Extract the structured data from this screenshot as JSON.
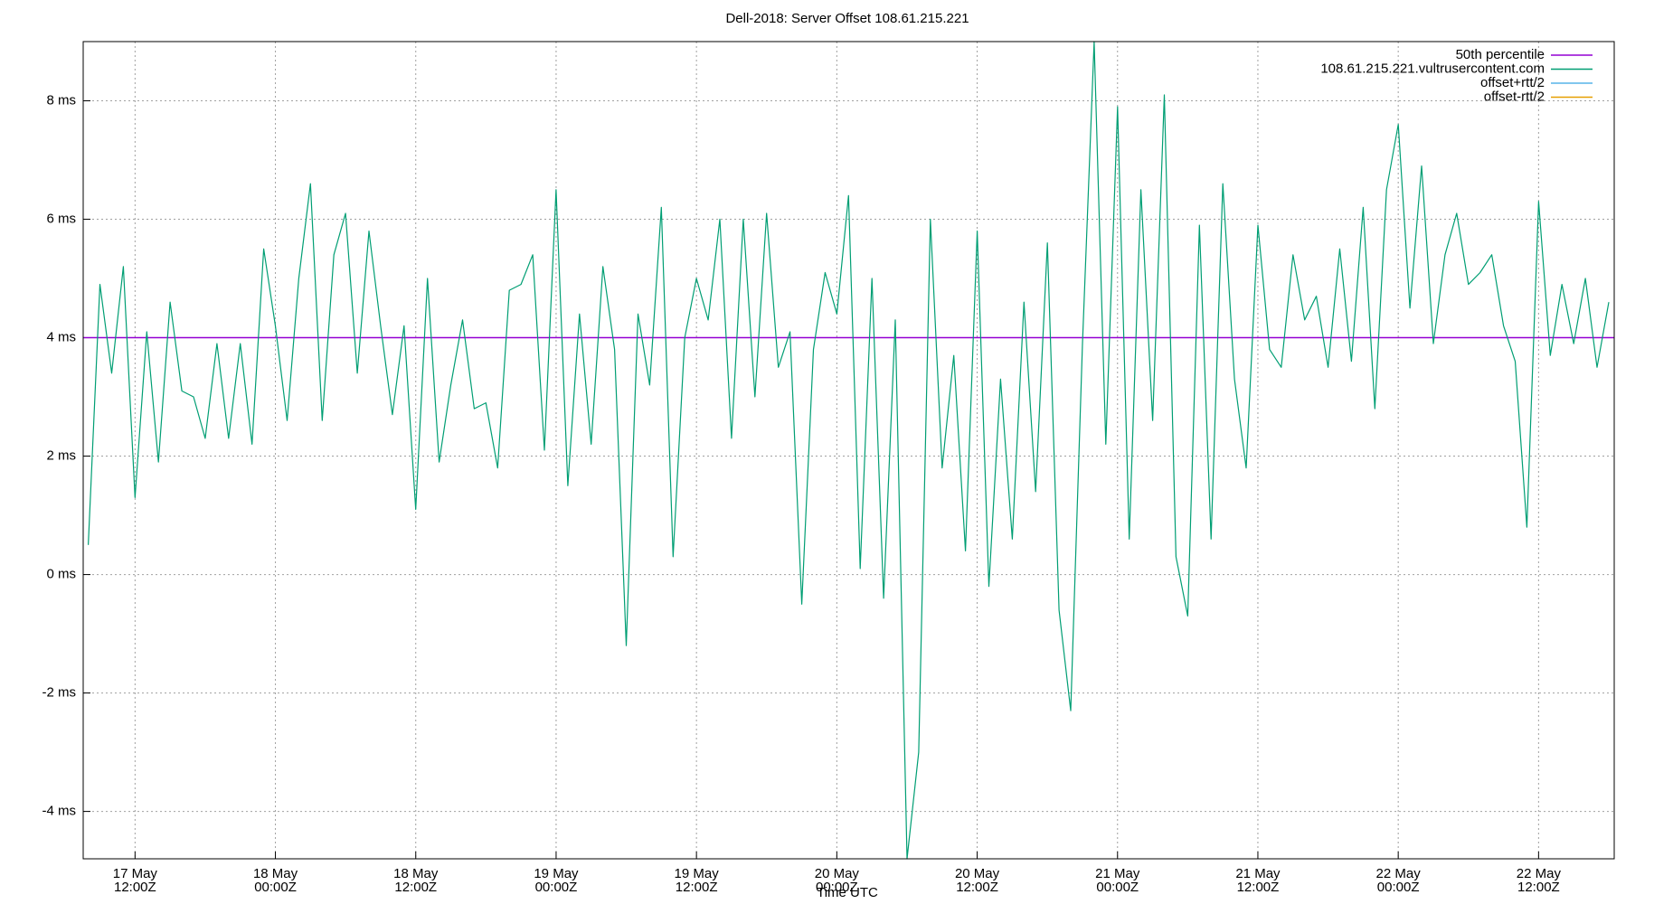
{
  "chart_data": {
    "type": "line",
    "title": "Dell-2018: Server Offset 108.61.215.221",
    "x_label": "Time UTC",
    "xlim": [
      "17 May 07:34Z",
      "22 May 18:28Z"
    ],
    "xticks": [
      {
        "value": "17 May 12:00Z",
        "label": [
          "17 May",
          "12:00Z"
        ]
      },
      {
        "value": "18 May 00:00Z",
        "label": [
          "18 May",
          "00:00Z"
        ]
      },
      {
        "value": "18 May 12:00Z",
        "label": [
          "18 May",
          "12:00Z"
        ]
      },
      {
        "value": "19 May 00:00Z",
        "label": [
          "19 May",
          "00:00Z"
        ]
      },
      {
        "value": "19 May 12:00Z",
        "label": [
          "19 May",
          "12:00Z"
        ]
      },
      {
        "value": "20 May 00:00Z",
        "label": [
          "20 May",
          "00:00Z"
        ]
      },
      {
        "value": "20 May 12:00Z",
        "label": [
          "20 May",
          "12:00Z"
        ]
      },
      {
        "value": "21 May 00:00Z",
        "label": [
          "21 May",
          "00:00Z"
        ]
      },
      {
        "value": "21 May 12:00Z",
        "label": [
          "21 May",
          "12:00Z"
        ]
      },
      {
        "value": "22 May 00:00Z",
        "label": [
          "22 May",
          "00:00Z"
        ]
      },
      {
        "value": "22 May 12:00Z",
        "label": [
          "22 May",
          "12:00Z"
        ]
      }
    ],
    "ylim": [
      -4.8,
      9.0
    ],
    "yticks": [
      {
        "value": -4,
        "label": "-4 ms"
      },
      {
        "value": -2,
        "label": "-2 ms"
      },
      {
        "value": 0,
        "label": "0 ms"
      },
      {
        "value": 2,
        "label": "2 ms"
      },
      {
        "value": 4,
        "label": "4 ms"
      },
      {
        "value": 6,
        "label": "6 ms"
      },
      {
        "value": 8,
        "label": "8 ms"
      }
    ],
    "grid": true,
    "legend": "top-right",
    "percentile": {
      "name": "50th percentile",
      "color": "#9400d3",
      "value": 4.0
    },
    "x": [
      "17 May 08:00Z",
      "17 May 09:00Z",
      "17 May 10:00Z",
      "17 May 11:00Z",
      "17 May 12:00Z",
      "17 May 13:00Z",
      "17 May 14:00Z",
      "17 May 15:00Z",
      "17 May 16:00Z",
      "17 May 17:00Z",
      "17 May 18:00Z",
      "17 May 19:00Z",
      "17 May 20:00Z",
      "17 May 21:00Z",
      "17 May 22:00Z",
      "17 May 23:00Z",
      "18 May 00:00Z",
      "18 May 01:00Z",
      "18 May 02:00Z",
      "18 May 03:00Z",
      "18 May 04:00Z",
      "18 May 05:00Z",
      "18 May 06:00Z",
      "18 May 07:00Z",
      "18 May 08:00Z",
      "18 May 09:00Z",
      "18 May 10:00Z",
      "18 May 11:00Z",
      "18 May 12:00Z",
      "18 May 13:00Z",
      "18 May 14:00Z",
      "18 May 15:00Z",
      "18 May 16:00Z",
      "18 May 17:00Z",
      "18 May 18:00Z",
      "18 May 19:00Z",
      "18 May 20:00Z",
      "18 May 21:00Z",
      "18 May 22:00Z",
      "18 May 23:00Z",
      "19 May 00:00Z",
      "19 May 01:00Z",
      "19 May 02:00Z",
      "19 May 03:00Z",
      "19 May 04:00Z",
      "19 May 05:00Z",
      "19 May 06:00Z",
      "19 May 07:00Z",
      "19 May 08:00Z",
      "19 May 09:00Z",
      "19 May 10:00Z",
      "19 May 11:00Z",
      "19 May 12:00Z",
      "19 May 13:00Z",
      "19 May 14:00Z",
      "19 May 15:00Z",
      "19 May 16:00Z",
      "19 May 17:00Z",
      "19 May 18:00Z",
      "19 May 19:00Z",
      "19 May 20:00Z",
      "19 May 21:00Z",
      "19 May 22:00Z",
      "19 May 23:00Z",
      "20 May 00:00Z",
      "20 May 01:00Z",
      "20 May 02:00Z",
      "20 May 03:00Z",
      "20 May 04:00Z",
      "20 May 05:00Z",
      "20 May 06:00Z",
      "20 May 07:00Z",
      "20 May 08:00Z",
      "20 May 09:00Z",
      "20 May 10:00Z",
      "20 May 11:00Z",
      "20 May 12:00Z",
      "20 May 13:00Z",
      "20 May 14:00Z",
      "20 May 15:00Z",
      "20 May 16:00Z",
      "20 May 17:00Z",
      "20 May 18:00Z",
      "20 May 19:00Z",
      "20 May 20:00Z",
      "20 May 21:00Z",
      "20 May 22:00Z",
      "20 May 23:00Z",
      "21 May 00:00Z",
      "21 May 01:00Z",
      "21 May 02:00Z",
      "21 May 03:00Z",
      "21 May 04:00Z",
      "21 May 05:00Z",
      "21 May 06:00Z",
      "21 May 07:00Z",
      "21 May 08:00Z",
      "21 May 09:00Z",
      "21 May 10:00Z",
      "21 May 11:00Z",
      "21 May 12:00Z",
      "21 May 13:00Z",
      "21 May 14:00Z",
      "21 May 15:00Z",
      "21 May 16:00Z",
      "21 May 17:00Z",
      "21 May 18:00Z",
      "21 May 19:00Z",
      "21 May 20:00Z",
      "21 May 21:00Z",
      "21 May 22:00Z",
      "21 May 23:00Z",
      "22 May 00:00Z",
      "22 May 01:00Z",
      "22 May 02:00Z",
      "22 May 03:00Z",
      "22 May 04:00Z",
      "22 May 05:00Z",
      "22 May 06:00Z",
      "22 May 07:00Z",
      "22 May 08:00Z",
      "22 May 09:00Z",
      "22 May 10:00Z",
      "22 May 11:00Z",
      "22 May 12:00Z",
      "22 May 13:00Z",
      "22 May 14:00Z",
      "22 May 15:00Z",
      "22 May 16:00Z",
      "22 May 17:00Z",
      "22 May 18:00Z"
    ],
    "series": [
      {
        "name": "108.61.215.221.vultrusercontent.com",
        "color": "#009e73",
        "values": [
          0.5,
          4.9,
          3.4,
          5.2,
          1.3,
          4.1,
          1.9,
          4.6,
          3.1,
          3.0,
          2.3,
          3.9,
          2.3,
          3.9,
          2.2,
          5.5,
          4.2,
          2.6,
          5.0,
          6.6,
          2.6,
          5.4,
          6.1,
          3.4,
          5.8,
          4.2,
          2.7,
          4.2,
          1.1,
          5.0,
          1.9,
          3.2,
          4.3,
          2.8,
          2.9,
          1.8,
          4.8,
          4.9,
          5.4,
          2.1,
          6.5,
          1.5,
          4.4,
          2.2,
          5.2,
          3.8,
          -1.2,
          4.4,
          3.2,
          6.2,
          0.3,
          4.0,
          5.0,
          4.3,
          6.0,
          2.3,
          6.0,
          3.0,
          6.1,
          3.5,
          4.1,
          -0.5,
          3.8,
          5.1,
          4.4,
          6.4,
          0.1,
          5.0,
          -0.4,
          4.3,
          -4.8,
          -3.0,
          6.0,
          1.8,
          3.7,
          0.4,
          5.8,
          -0.2,
          3.3,
          0.6,
          4.6,
          1.4,
          5.6,
          -0.6,
          -2.3,
          3.9,
          9.0,
          2.2,
          7.9,
          0.6,
          6.5,
          2.6,
          8.1,
          0.3,
          -0.7,
          5.9,
          0.6,
          6.6,
          3.3,
          1.8,
          5.9,
          3.8,
          3.5,
          5.4,
          4.3,
          4.7,
          3.5,
          5.5,
          3.6,
          6.2,
          2.8,
          6.5,
          7.6,
          4.5,
          6.9,
          3.9,
          5.4,
          6.1,
          4.9,
          5.1,
          5.4,
          4.2,
          3.6,
          0.8,
          6.3,
          3.7,
          4.9,
          3.9,
          5.0,
          3.5,
          4.6
        ]
      },
      {
        "name": "offset+rtt/2",
        "color": "#56b4e9"
      },
      {
        "name": "offset-rtt/2",
        "color": "#e69f00"
      }
    ]
  }
}
